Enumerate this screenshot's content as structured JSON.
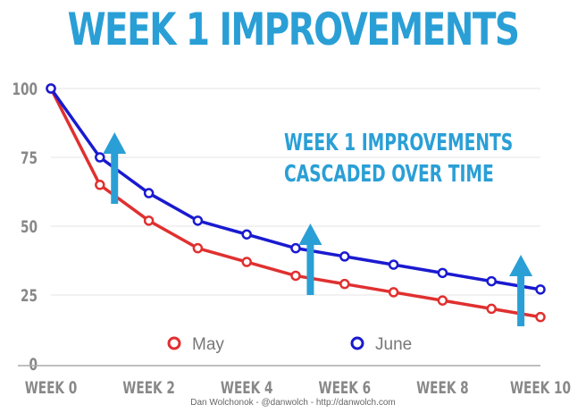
{
  "chart_data": {
    "type": "line",
    "title": "WEEK 1 IMPROVEMENTS",
    "annotation": [
      "WEEK 1 IMPROVEMENTS",
      "CASCADED OVER TIME"
    ],
    "x": [
      0,
      1,
      2,
      3,
      4,
      5,
      6,
      7,
      8,
      9,
      10
    ],
    "xticks": [
      0,
      2,
      4,
      6,
      8,
      10
    ],
    "xtick_labels": [
      "WEEK 0",
      "WEEK 2",
      "WEEK 4",
      "WEEK 6",
      "WEEK 8",
      "WEEK 10"
    ],
    "yticks": [
      0,
      25,
      50,
      75,
      100
    ],
    "ylim": [
      0,
      100
    ],
    "grid": true,
    "legend": "bottom-center",
    "series": [
      {
        "name": "May",
        "color": "#e03030",
        "values": [
          100,
          65,
          52,
          42,
          37,
          32,
          29,
          26,
          23,
          20,
          17
        ]
      },
      {
        "name": "June",
        "color": "#1a1ad0",
        "values": [
          100,
          75,
          62,
          52,
          47,
          42,
          39,
          36,
          33,
          30,
          27
        ]
      }
    ],
    "arrows_color": "#2a9fd6",
    "arrows_at_week": [
      1.3,
      5.3,
      9.6
    ]
  },
  "credit": "Dan Wolchonok - @danwolch - http://danwolch.com"
}
